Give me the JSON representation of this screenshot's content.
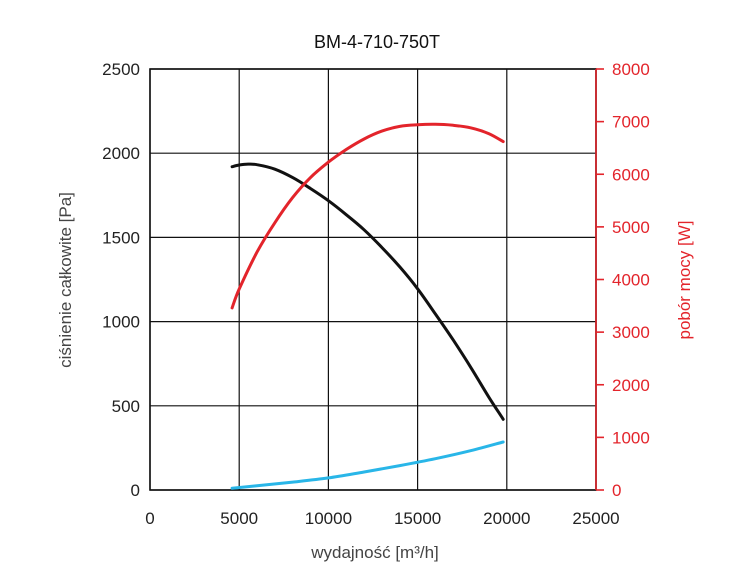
{
  "chart_data": {
    "type": "line",
    "title": "BM-4-710-750T",
    "xlabel": "wydajność [m³/h]",
    "ylabel_left": "ciśnienie całkowite [Pa]",
    "ylabel_right": "pobór mocy [W]",
    "xlim": [
      0,
      25000
    ],
    "ylim_left": [
      0,
      2500
    ],
    "ylim_right": [
      0,
      8000
    ],
    "x_ticks": [
      "0",
      "5000",
      "10000",
      "15000",
      "20000",
      "25000"
    ],
    "y_left_ticks": [
      "0",
      "500",
      "1000",
      "1500",
      "2000",
      "2500"
    ],
    "y_right_ticks": [
      "0",
      "1000",
      "2000",
      "3000",
      "4000",
      "5000",
      "6000",
      "7000",
      "8000"
    ],
    "grid": true,
    "colors": {
      "pressure": "#111111",
      "power": "#e3242b",
      "third": "#29b6e8",
      "right_axis": "#e3242b"
    },
    "series": [
      {
        "axis": "left",
        "color": "#111111",
        "x": [
          4600,
          5000,
          5500,
          6000,
          7000,
          8000,
          9000,
          10000,
          11000,
          12000,
          13000,
          14000,
          15000,
          16000,
          17000,
          18000,
          19000,
          19800
        ],
        "y": [
          1920,
          1930,
          1935,
          1932,
          1905,
          1855,
          1790,
          1718,
          1635,
          1545,
          1440,
          1325,
          1195,
          1045,
          890,
          725,
          550,
          420
        ]
      },
      {
        "axis": "right",
        "color": "#e3242b",
        "x": [
          4600,
          5000,
          6000,
          7000,
          8000,
          9000,
          10000,
          11000,
          12000,
          13000,
          14000,
          15000,
          16000,
          17000,
          18000,
          19000,
          19800
        ],
        "y": [
          3460,
          3820,
          4520,
          5080,
          5560,
          5940,
          6230,
          6470,
          6670,
          6820,
          6910,
          6940,
          6950,
          6930,
          6880,
          6770,
          6620
        ]
      },
      {
        "axis": "left",
        "color": "#29b6e8",
        "x": [
          4600,
          6000,
          8000,
          10000,
          12000,
          14000,
          16000,
          18000,
          19800
        ],
        "y": [
          10,
          25,
          47,
          72,
          107,
          145,
          186,
          234,
          285
        ]
      }
    ]
  }
}
